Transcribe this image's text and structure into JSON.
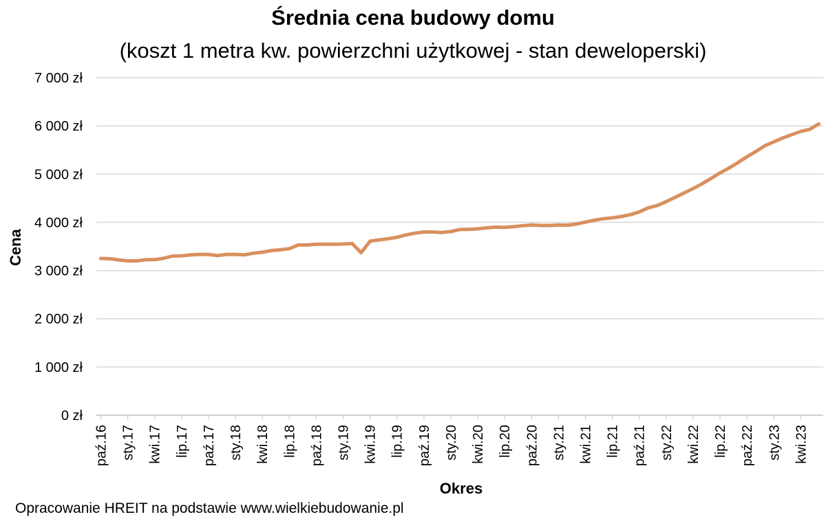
{
  "title": "Średnia cena budowy domu",
  "subtitle": "(koszt 1 metra kw. powierzchni użytkowej - stan deweloperski)",
  "source": "Opracowanie HREIT na podstawie www.wielkiebudowanie.pl",
  "colors": {
    "line": "#D9905E",
    "grid": "#D9D9D9",
    "axis": "#BFBFBF",
    "text": "#000000"
  },
  "chart_data": {
    "type": "line",
    "title": "Średnia cena budowy domu",
    "subtitle": "(koszt 1 metra kw. powierzchni użytkowej - stan deweloperski)",
    "xlabel": "Okres",
    "ylabel": "Cena",
    "ylim": [
      0,
      7000
    ],
    "yticks": [
      0,
      1000,
      2000,
      3000,
      4000,
      5000,
      6000,
      7000
    ],
    "ytick_labels": [
      "0 zł",
      "1 000 zł",
      "2 000 zł",
      "3 000 zł",
      "4 000 zł",
      "5 000 zł",
      "6 000 zł",
      "7 000 zł"
    ],
    "x_tick_labels": [
      "paź.16",
      "sty.17",
      "kwi.17",
      "lip.17",
      "paź.17",
      "sty.18",
      "kwi.18",
      "lip.18",
      "paź.18",
      "sty.19",
      "kwi.19",
      "lip.19",
      "paź.19",
      "sty.20",
      "kwi.20",
      "lip.20",
      "paź.20",
      "sty.21",
      "kwi.21",
      "lip.21",
      "paź.21",
      "sty.22",
      "kwi.22",
      "lip.22",
      "paź.22",
      "sty.23",
      "kwi.23"
    ],
    "x_tick_every": 3,
    "grid": true,
    "legend": "none",
    "series": [
      {
        "values": [
          3250,
          3245,
          3220,
          3200,
          3200,
          3225,
          3225,
          3255,
          3300,
          3305,
          3325,
          3335,
          3335,
          3310,
          3335,
          3335,
          3325,
          3360,
          3380,
          3415,
          3430,
          3455,
          3530,
          3530,
          3545,
          3545,
          3545,
          3550,
          3560,
          3370,
          3610,
          3635,
          3660,
          3690,
          3740,
          3775,
          3800,
          3800,
          3790,
          3810,
          3850,
          3855,
          3865,
          3885,
          3900,
          3895,
          3910,
          3930,
          3945,
          3935,
          3935,
          3945,
          3940,
          3965,
          4005,
          4045,
          4075,
          4095,
          4120,
          4160,
          4215,
          4300,
          4350,
          4430,
          4520,
          4610,
          4700,
          4800,
          4910,
          5025,
          5125,
          5240,
          5360,
          5470,
          5590,
          5670,
          5750,
          5820,
          5885,
          5930,
          6040
        ]
      }
    ]
  }
}
